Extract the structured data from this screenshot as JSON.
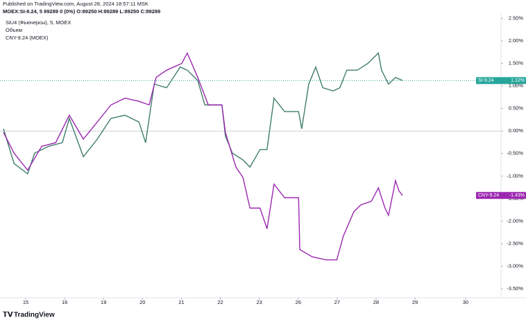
{
  "header": {
    "published": "Published on TradingView.com, August 28, 2024 18:57:11 MSK",
    "symbol_line": "MOEX:SI-9.24, 5  89289 0 (0%) O:89250 H:89289 L:89250 C:89289",
    "volume_label": "Объем",
    "brand": "TradingView"
  },
  "chart_data": {
    "type": "line",
    "xlim": [
      -0.66,
      12.21
    ],
    "ylim": [
      -3.7,
      2.6
    ],
    "xticks": [
      {
        "value": 0,
        "label": "15"
      },
      {
        "value": 1,
        "label": "16"
      },
      {
        "value": 2,
        "label": "19"
      },
      {
        "value": 3,
        "label": "20"
      },
      {
        "value": 4,
        "label": "21"
      },
      {
        "value": 5,
        "label": "22"
      },
      {
        "value": 6,
        "label": "23"
      },
      {
        "value": 7,
        "label": "26"
      },
      {
        "value": 8,
        "label": "27"
      },
      {
        "value": 9,
        "label": "28"
      },
      {
        "value": 10,
        "label": "29"
      },
      {
        "value": 11.3,
        "label": "30"
      }
    ],
    "yticks": [
      {
        "value": 2.5,
        "label": "2.50%"
      },
      {
        "value": 2,
        "label": "2.00%"
      },
      {
        "value": 1.5,
        "label": "1.50%"
      },
      {
        "value": 1,
        "label": "1.00%"
      },
      {
        "value": 0.5,
        "label": "0.50%"
      },
      {
        "value": 0,
        "label": "0.00%"
      },
      {
        "value": -0.5,
        "label": "-0.50%"
      },
      {
        "value": -1,
        "label": "-1.00%"
      },
      {
        "value": -1.5,
        "label": "-1.50%"
      },
      {
        "value": -2,
        "label": "-2.00%"
      },
      {
        "value": -2.5,
        "label": "-2.50%"
      },
      {
        "value": -3,
        "label": "-3.00%"
      },
      {
        "value": -3.5,
        "label": "-3.50%"
      }
    ],
    "zero_line": true,
    "grid": false,
    "series": [
      {
        "name": "SiU4 (Фьючерсы), 5, MOEX",
        "tag": "SI-9.24",
        "last_label": "1.12%",
        "color": "#3f7d6b",
        "tag_color": "#26a69a",
        "x": [
          -0.57,
          -0.3,
          0.05,
          0.23,
          0.59,
          0.94,
          1.12,
          1.48,
          1.84,
          2.19,
          2.55,
          2.91,
          3.08,
          3.3,
          3.62,
          3.97,
          4.15,
          4.42,
          4.6,
          5.04,
          5.13,
          5.31,
          5.58,
          5.76,
          6.02,
          6.2,
          6.38,
          6.65,
          7.01,
          7.09,
          7.27,
          7.45,
          7.63,
          7.9,
          8.07,
          8.25,
          8.52,
          8.79,
          9.06,
          9.14,
          9.32,
          9.5,
          9.68
        ],
        "values": [
          0.05,
          -0.72,
          -0.95,
          -0.49,
          -0.34,
          -0.26,
          0.28,
          -0.57,
          -0.18,
          0.28,
          0.35,
          0.2,
          -0.26,
          1.04,
          0.96,
          1.42,
          1.35,
          1.12,
          0.58,
          0.58,
          -0.11,
          -0.49,
          -0.64,
          -0.8,
          -0.41,
          -0.41,
          0.73,
          0.43,
          0.43,
          0.05,
          1.04,
          1.42,
          0.96,
          0.89,
          0.96,
          1.35,
          1.35,
          1.5,
          1.73,
          1.35,
          1.04,
          1.19,
          1.12
        ]
      },
      {
        "name": "CNY-9.24 (MOEX)",
        "tag": "CNY-9.24",
        "last_label": "-1.43%",
        "color": "#9c27b0",
        "tag_color": "#9c27b0",
        "x": [
          -0.57,
          -0.3,
          0.05,
          0.41,
          0.77,
          1.12,
          1.48,
          1.84,
          2.19,
          2.55,
          2.91,
          3.17,
          3.35,
          3.62,
          4.01,
          4.15,
          4.42,
          4.69,
          5.04,
          5.13,
          5.4,
          5.58,
          5.76,
          6.02,
          6.2,
          6.38,
          6.65,
          7.01,
          7.04,
          7.36,
          7.72,
          7.99,
          8.16,
          8.43,
          8.61,
          8.88,
          9.06,
          9.23,
          9.32,
          9.5,
          9.59,
          9.68
        ],
        "values": [
          -0.03,
          -0.49,
          -0.87,
          -0.34,
          -0.26,
          0.35,
          -0.18,
          0.2,
          0.58,
          0.73,
          0.66,
          0.58,
          1.19,
          1.35,
          1.5,
          1.73,
          1.19,
          0.58,
          0.58,
          -0.03,
          -0.8,
          -1.03,
          -1.71,
          -1.71,
          -2.17,
          -1.18,
          -1.48,
          -1.48,
          -2.63,
          -2.79,
          -2.86,
          -2.86,
          -2.33,
          -1.79,
          -1.64,
          -1.56,
          -1.26,
          -1.71,
          -1.87,
          -1.1,
          -1.33,
          -1.43
        ]
      }
    ]
  }
}
